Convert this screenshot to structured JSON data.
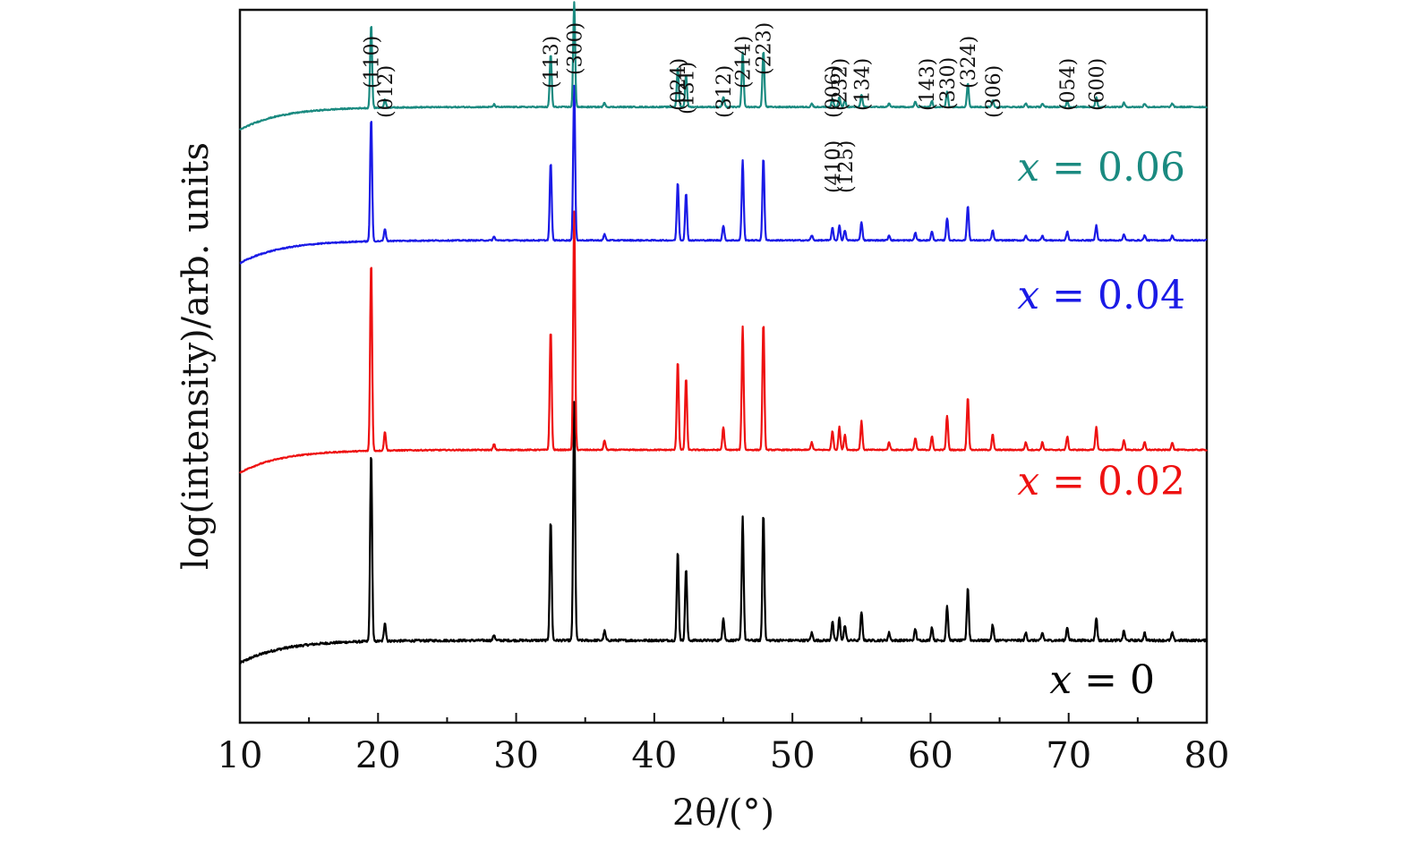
{
  "chart_data": {
    "type": "line",
    "title": "",
    "xlabel": "2θ/(°)",
    "ylabel": "log(intensity)/arb. units",
    "xlim": [
      10,
      80
    ],
    "xticks": [
      10,
      20,
      30,
      40,
      50,
      60,
      70,
      80
    ],
    "grid": false,
    "legend": "inline labels at right",
    "peaks": [
      {
        "pos": 19.5,
        "h": 1.0
      },
      {
        "pos": 20.5,
        "h": 0.1
      },
      {
        "pos": 28.4,
        "h": 0.03
      },
      {
        "pos": 32.5,
        "h": 0.63
      },
      {
        "pos": 34.2,
        "h": 1.25
      },
      {
        "pos": 36.4,
        "h": 0.05
      },
      {
        "pos": 41.7,
        "h": 0.47
      },
      {
        "pos": 42.3,
        "h": 0.38
      },
      {
        "pos": 45.0,
        "h": 0.12
      },
      {
        "pos": 46.4,
        "h": 0.65
      },
      {
        "pos": 47.9,
        "h": 0.67
      },
      {
        "pos": 51.4,
        "h": 0.04
      },
      {
        "pos": 52.9,
        "h": 0.1
      },
      {
        "pos": 53.4,
        "h": 0.12
      },
      {
        "pos": 53.8,
        "h": 0.08
      },
      {
        "pos": 55.0,
        "h": 0.15
      },
      {
        "pos": 57.0,
        "h": 0.04
      },
      {
        "pos": 58.9,
        "h": 0.06
      },
      {
        "pos": 60.1,
        "h": 0.07
      },
      {
        "pos": 61.2,
        "h": 0.18
      },
      {
        "pos": 62.7,
        "h": 0.28
      },
      {
        "pos": 64.5,
        "h": 0.08
      },
      {
        "pos": 66.9,
        "h": 0.04
      },
      {
        "pos": 68.1,
        "h": 0.04
      },
      {
        "pos": 69.9,
        "h": 0.07
      },
      {
        "pos": 72.0,
        "h": 0.12
      },
      {
        "pos": 74.0,
        "h": 0.05
      },
      {
        "pos": 75.5,
        "h": 0.04
      },
      {
        "pos": 77.5,
        "h": 0.04
      }
    ],
    "series": [
      {
        "name": "x = 0",
        "prefix": "x",
        "value": "= 0",
        "color": "#000000",
        "offset": 0.0,
        "peak_scale": 1.0
      },
      {
        "name": "x = 0.02",
        "prefix": "x",
        "value": "= 0.02",
        "color": "#ee1111",
        "offset": 1.0,
        "peak_scale": 1.0
      },
      {
        "name": "x = 0.04",
        "prefix": "x",
        "value": "= 0.04",
        "color": "#1a1ae6",
        "offset": 2.1,
        "peak_scale": 0.65
      },
      {
        "name": "x = 0.06",
        "prefix": "x",
        "value": "= 0.06",
        "color": "#1a8a80",
        "offset": 2.8,
        "peak_scale": 0.44
      }
    ],
    "peak_labels": [
      {
        "text": "(110)",
        "pos": 19.5,
        "row": "high"
      },
      {
        "text": "(012)",
        "pos": 20.5,
        "row": "low"
      },
      {
        "text": "(113)",
        "pos": 32.5,
        "row": "high"
      },
      {
        "text": "(300)",
        "pos": 34.2,
        "row": "top"
      },
      {
        "text": "(024)",
        "pos": 41.7,
        "row": "mid"
      },
      {
        "text": "(131)",
        "pos": 42.3,
        "row": "midlow"
      },
      {
        "text": "(312)",
        "pos": 45.0,
        "row": "low"
      },
      {
        "text": "(214)",
        "pos": 46.4,
        "row": "high"
      },
      {
        "text": "(223)",
        "pos": 47.9,
        "row": "top"
      },
      {
        "text": "(006)",
        "pos": 52.9,
        "row": "low"
      },
      {
        "text": "(232)",
        "pos": 53.4,
        "row": "mid"
      },
      {
        "text": "(134)",
        "pos": 55.0,
        "row": "mid"
      },
      {
        "text": "(410)",
        "pos": 52.9,
        "row": "below"
      },
      {
        "text": "(125)",
        "pos": 53.8,
        "row": "below"
      },
      {
        "text": "(143)",
        "pos": 59.7,
        "row": "mid"
      },
      {
        "text": "(330)",
        "pos": 61.2,
        "row": "high2"
      },
      {
        "text": "(324)",
        "pos": 62.7,
        "row": "high"
      },
      {
        "text": "(306)",
        "pos": 64.5,
        "row": "low"
      },
      {
        "text": "(054)",
        "pos": 69.9,
        "row": "mid"
      },
      {
        "text": "(600)",
        "pos": 72.0,
        "row": "mid"
      }
    ]
  }
}
